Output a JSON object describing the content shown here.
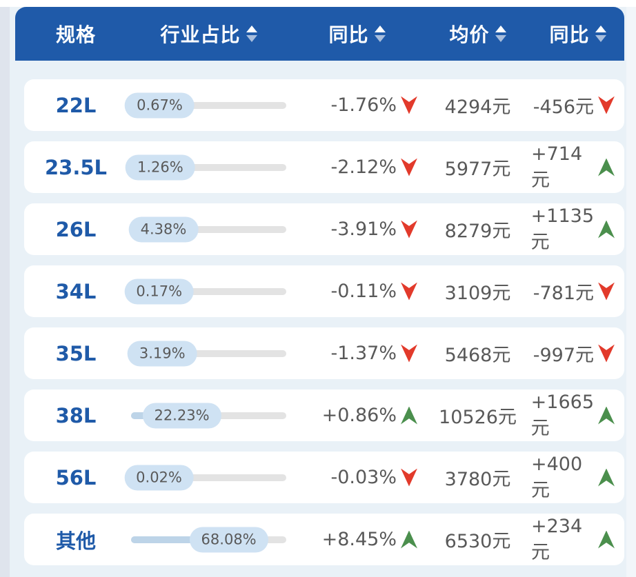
{
  "colors": {
    "header_bg": "#1f5aa9",
    "page_bg": "#e9f1f7",
    "left_strip": "#dfe4ed",
    "card_bg": "#ffffff",
    "spec_text": "#1f5aa8",
    "value_text": "#595959",
    "up_green": "#4b8f4d",
    "down_red": "#e23a2b",
    "badge_bg": "#cfe2f3",
    "track": "#e3e3e3",
    "fill": "#bdd4e8",
    "sort_up": "#ffffff",
    "sort_down": "#a8bedd"
  },
  "header": {
    "columns": [
      {
        "label": "规格",
        "sortable": false
      },
      {
        "label": "行业占比",
        "sortable": true
      },
      {
        "label": "同比",
        "sortable": true
      },
      {
        "label": "均价",
        "sortable": true
      },
      {
        "label": "同比",
        "sortable": true
      }
    ]
  },
  "rows": [
    {
      "spec": "22L",
      "share_label": "0.67%",
      "share_value": 0.67,
      "yoy_label": "-1.76%",
      "yoy_dir": "down",
      "price_label": "4294元",
      "change_label": "-456元",
      "change_dir": "down"
    },
    {
      "spec": "23.5L",
      "share_label": "1.26%",
      "share_value": 1.26,
      "yoy_label": "-2.12%",
      "yoy_dir": "down",
      "price_label": "5977元",
      "change_label": "+714元",
      "change_dir": "up"
    },
    {
      "spec": "26L",
      "share_label": "4.38%",
      "share_value": 4.38,
      "yoy_label": "-3.91%",
      "yoy_dir": "down",
      "price_label": "8279元",
      "change_label": "+1135元",
      "change_dir": "up"
    },
    {
      "spec": "34L",
      "share_label": "0.17%",
      "share_value": 0.17,
      "yoy_label": "-0.11%",
      "yoy_dir": "down",
      "price_label": "3109元",
      "change_label": "-781元",
      "change_dir": "down"
    },
    {
      "spec": "35L",
      "share_label": "3.19%",
      "share_value": 3.19,
      "yoy_label": "-1.37%",
      "yoy_dir": "down",
      "price_label": "5468元",
      "change_label": "-997元",
      "change_dir": "down"
    },
    {
      "spec": "38L",
      "share_label": "22.23%",
      "share_value": 22.23,
      "yoy_label": "+0.86%",
      "yoy_dir": "up",
      "price_label": "10526元",
      "change_label": "+1665元",
      "change_dir": "up"
    },
    {
      "spec": "56L",
      "share_label": "0.02%",
      "share_value": 0.02,
      "yoy_label": "-0.03%",
      "yoy_dir": "down",
      "price_label": "3780元",
      "change_label": "+400元",
      "change_dir": "up"
    },
    {
      "spec": "其他",
      "share_label": "68.08%",
      "share_value": 68.08,
      "yoy_label": "+8.45%",
      "yoy_dir": "up",
      "price_label": "6530元",
      "change_label": "+234元",
      "change_dir": "up"
    }
  ],
  "chart_data": {
    "type": "table",
    "columns": [
      "规格",
      "行业占比",
      "同比",
      "均价",
      "同比"
    ],
    "rows": [
      [
        "22L",
        "0.67%",
        "-1.76%",
        "4294元",
        "-456元"
      ],
      [
        "23.5L",
        "1.26%",
        "-2.12%",
        "5977元",
        "+714元"
      ],
      [
        "26L",
        "4.38%",
        "-3.91%",
        "8279元",
        "+1135元"
      ],
      [
        "34L",
        "0.17%",
        "-0.11%",
        "3109元",
        "-781元"
      ],
      [
        "35L",
        "3.19%",
        "-1.37%",
        "5468元",
        "-997元"
      ],
      [
        "38L",
        "22.23%",
        "+0.86%",
        "10526元",
        "+1665元"
      ],
      [
        "56L",
        "0.02%",
        "-0.03%",
        "3780元",
        "+400元"
      ],
      [
        "其他",
        "68.08%",
        "+8.45%",
        "6530元",
        "+234元"
      ]
    ]
  }
}
